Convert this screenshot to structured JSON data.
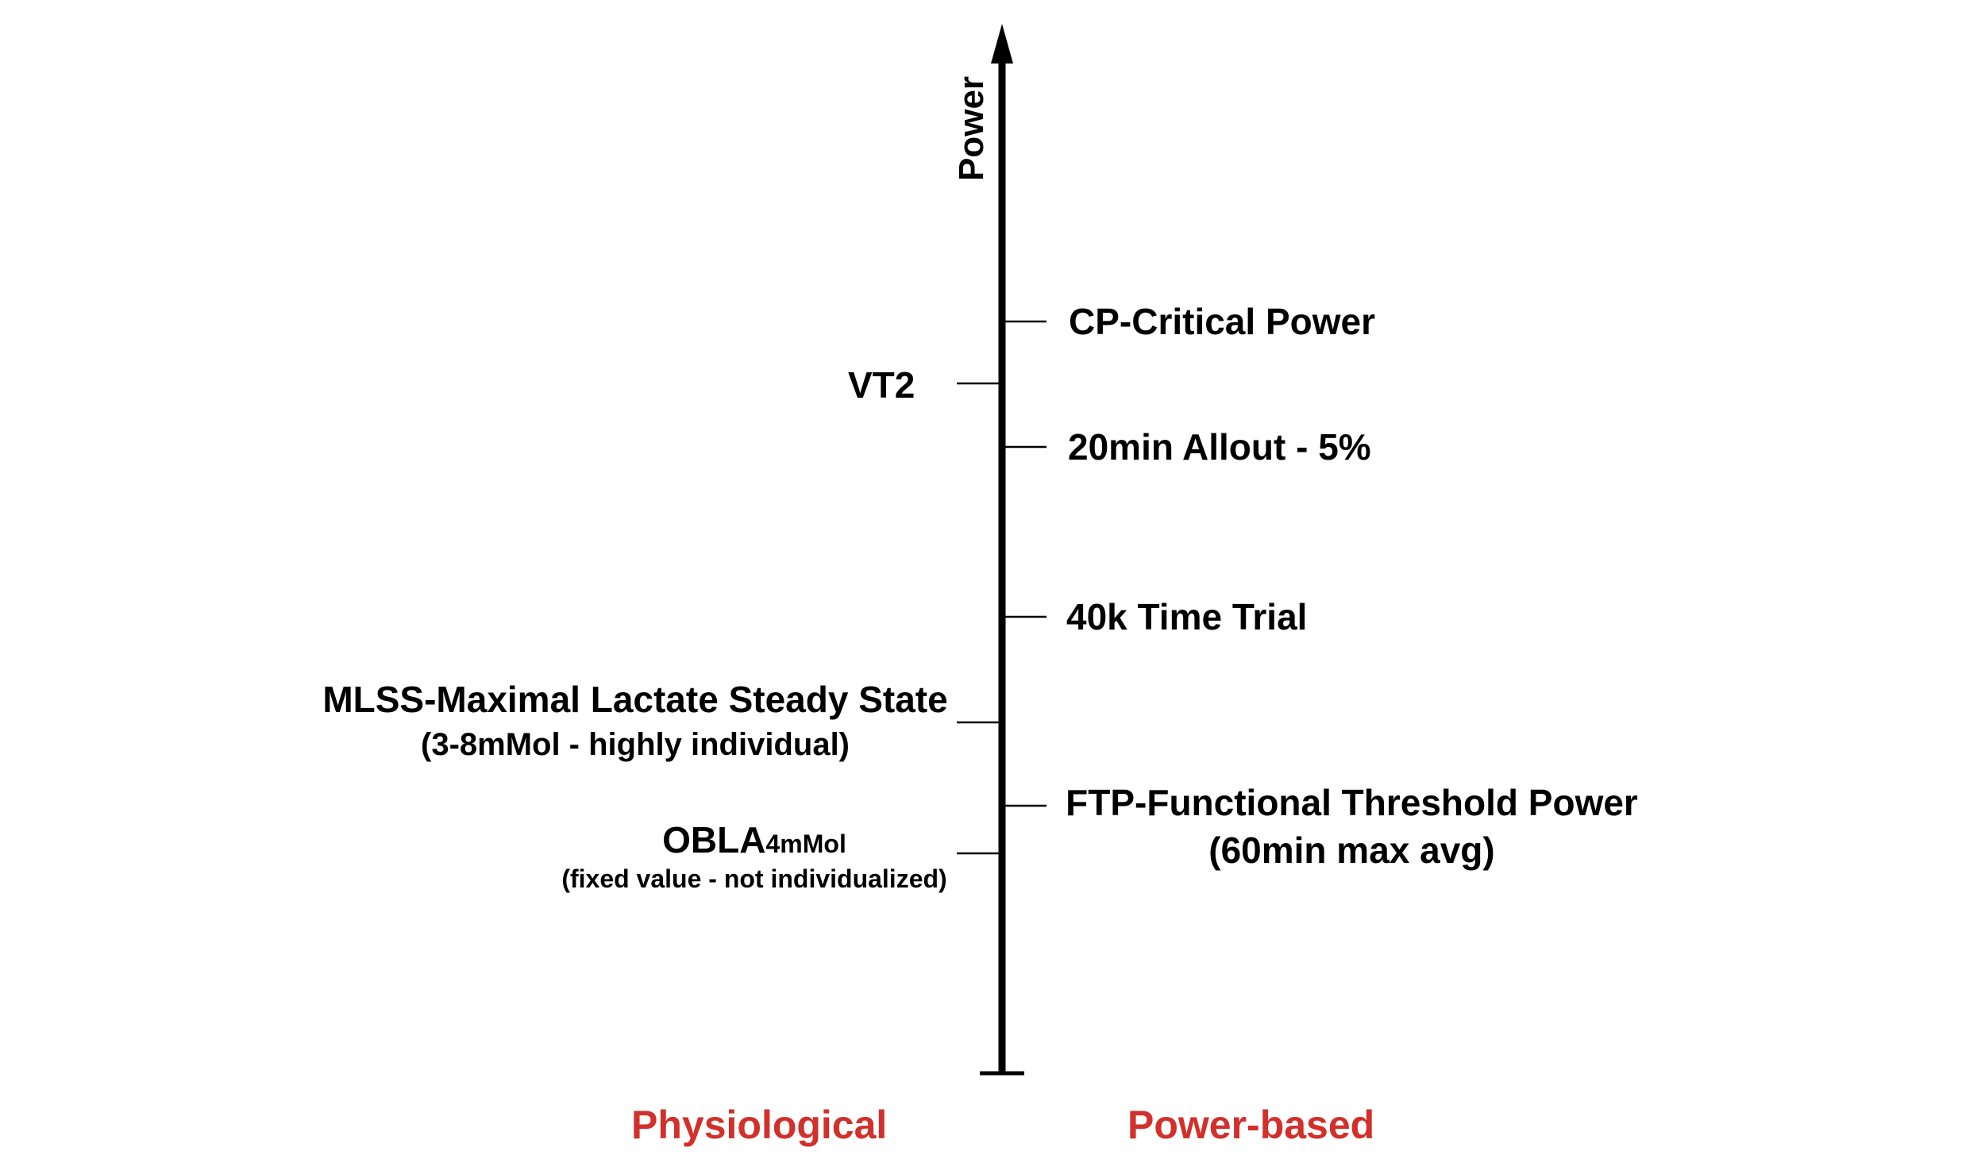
{
  "axis": {
    "label": "Power"
  },
  "physiological": {
    "heading": "Physiological",
    "vt2": "VT2",
    "mlss_title": "MLSS-Maximal Lactate Steady State",
    "mlss_note": "(3-8mMol - highly individual)",
    "obla_main": "OBLA",
    "obla_sub": "4mMol",
    "obla_note": "(fixed value - not individualized)"
  },
  "power_based": {
    "heading": "Power-based",
    "cp": "CP-Critical Power",
    "allout": "20min Allout - 5%",
    "tt": "40k Time Trial",
    "ftp_title": "FTP-Functional Threshold Power",
    "ftp_note": "(60min max avg)"
  },
  "colors": {
    "heading": "#d2302a",
    "axis": "#000000"
  }
}
